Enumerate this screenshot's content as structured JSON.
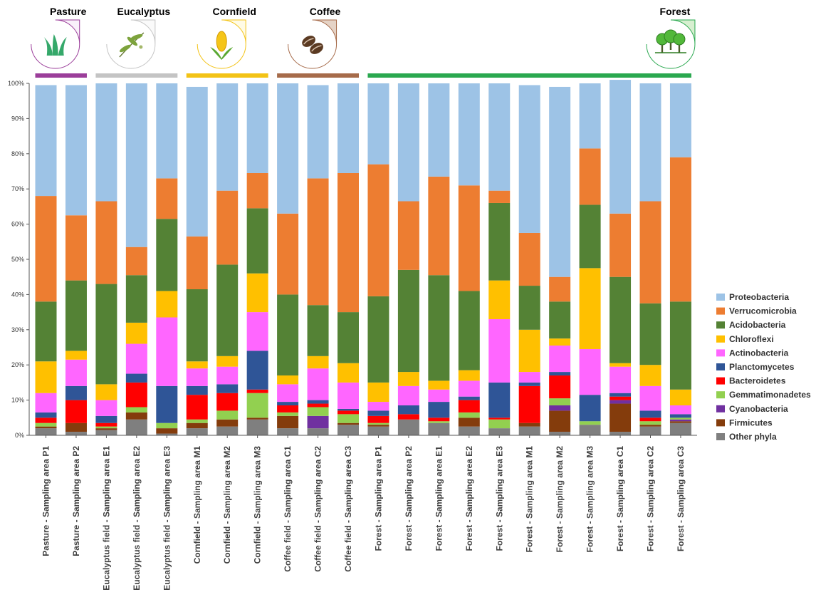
{
  "chart_data": {
    "type": "bar",
    "stacked": true,
    "percent": true,
    "ylim": [
      0,
      100
    ],
    "yticks": [
      "0%",
      "10%",
      "20%",
      "30%",
      "40%",
      "50%",
      "60%",
      "70%",
      "80%",
      "90%",
      "100%"
    ],
    "groups": [
      {
        "name": "Pasture",
        "color": "#9b3e9a",
        "icon": "grass-icon",
        "start": 0,
        "end": 1
      },
      {
        "name": "Eucalyptus",
        "color": "#c4c4c4",
        "icon": "eucalyptus-leaf-icon",
        "start": 2,
        "end": 4
      },
      {
        "name": "Cornfield",
        "color": "#f3c316",
        "icon": "corn-icon",
        "start": 5,
        "end": 7
      },
      {
        "name": "Coffee",
        "color": "#a66b4a",
        "icon": "coffee-bean-icon",
        "start": 8,
        "end": 10
      },
      {
        "name": "Forest",
        "color": "#2aa84f",
        "icon": "trees-icon",
        "start": 11,
        "end": 21
      }
    ],
    "categories": [
      "Pasture - Sampling area P1",
      "Pasture - Sampling area P2",
      "Eucalyptus field - Sampling area E1",
      "Eucalyptus field - Sampling area E2",
      "Eucalyptus field - Sampling area E3",
      "Cornfield - Sampling area M1",
      "Cornfield - Sampling area M2",
      "Cornfield - Sampling area M3",
      "Coffee field - Sampling area C1",
      "Coffee field - Sampling area C2",
      "Coffee field - Sampling area C3",
      "Forest - Sampling area P1",
      "Forest - Sampling area P2",
      "Forest - Sampling area E1",
      "Forest - Sampling area E2",
      "Forest - Sampling area E3",
      "Forest - Sampling area M1",
      "Forest - Sampling area M2",
      "Forest - Sampling area M3",
      "Forest - Sampling area C1",
      "Forest - Sampling area C2",
      "Forest - Sampling area C3"
    ],
    "series": [
      {
        "name": "Other phyla",
        "color": "#7f7f7f",
        "values": [
          2.0,
          1.0,
          1.5,
          4.5,
          0.5,
          2.0,
          2.5,
          4.5,
          2.0,
          2.0,
          3.0,
          2.5,
          4.5,
          3.5,
          2.5,
          2.0,
          2.5,
          1.0,
          3.0,
          1.0,
          2.5,
          3.5
        ]
      },
      {
        "name": "Firmicutes",
        "color": "#843c0c",
        "values": [
          0.5,
          2.5,
          0.5,
          2.0,
          1.5,
          1.5,
          2.0,
          0.5,
          3.5,
          0.0,
          0.5,
          0.5,
          0.0,
          0.0,
          2.5,
          0.0,
          1.0,
          6.0,
          0.0,
          8.0,
          0.5,
          0.5
        ]
      },
      {
        "name": "Cyanobacteria",
        "color": "#7030a0",
        "values": [
          0.0,
          0.0,
          0.0,
          0.0,
          0.0,
          0.0,
          0.0,
          0.0,
          0.0,
          3.5,
          0.0,
          0.0,
          0.0,
          0.0,
          0.0,
          0.0,
          0.0,
          1.5,
          0.0,
          1.0,
          0.0,
          0.5
        ]
      },
      {
        "name": "Gemmatimonadetes",
        "color": "#92d050",
        "values": [
          1.0,
          0.0,
          0.5,
          1.5,
          1.5,
          1.0,
          2.5,
          7.0,
          1.0,
          2.5,
          2.5,
          0.5,
          0.0,
          0.5,
          1.5,
          2.5,
          0.0,
          2.0,
          1.0,
          0.0,
          1.0,
          0.5
        ]
      },
      {
        "name": "Bacteroidetes",
        "color": "#ff0000",
        "values": [
          1.5,
          6.5,
          1.0,
          7.0,
          0.0,
          7.0,
          5.0,
          1.0,
          2.0,
          1.0,
          1.0,
          2.0,
          1.5,
          1.0,
          3.5,
          0.5,
          10.5,
          6.5,
          0.0,
          1.0,
          1.0,
          0.0
        ]
      },
      {
        "name": "Planctomycetes",
        "color": "#2f5597",
        "values": [
          1.5,
          4.0,
          2.0,
          2.5,
          10.5,
          2.5,
          2.5,
          11.0,
          1.0,
          1.0,
          0.5,
          1.5,
          2.5,
          4.5,
          1.0,
          10.0,
          1.0,
          1.0,
          7.5,
          1.0,
          2.0,
          1.0
        ]
      },
      {
        "name": "Actinobacteria",
        "color": "#ff66ff",
        "values": [
          5.5,
          7.5,
          4.5,
          8.5,
          19.5,
          5.0,
          5.0,
          11.0,
          5.0,
          9.0,
          7.5,
          2.5,
          5.5,
          3.5,
          4.5,
          18.0,
          3.0,
          7.5,
          13.0,
          7.5,
          7.0,
          2.5
        ]
      },
      {
        "name": "Chloroflexi",
        "color": "#ffc000",
        "values": [
          9.0,
          2.5,
          4.5,
          6.0,
          7.5,
          2.0,
          3.0,
          11.0,
          2.5,
          3.5,
          5.5,
          5.5,
          4.0,
          2.5,
          3.0,
          11.0,
          12.0,
          2.0,
          23.0,
          1.0,
          6.0,
          4.5
        ]
      },
      {
        "name": "Acidobacteria",
        "color": "#548235",
        "values": [
          17.0,
          20.0,
          28.5,
          13.5,
          20.5,
          20.5,
          26.0,
          18.5,
          23.0,
          14.5,
          14.5,
          24.5,
          29.0,
          30.0,
          22.5,
          22.0,
          12.5,
          10.5,
          18.0,
          24.5,
          17.5,
          25.0
        ]
      },
      {
        "name": "Verrucomicrobia",
        "color": "#ed7d31",
        "values": [
          30.0,
          18.5,
          23.5,
          8.0,
          11.5,
          15.0,
          21.0,
          10.0,
          23.0,
          36.0,
          39.5,
          37.5,
          19.5,
          28.0,
          30.0,
          3.5,
          15.0,
          7.0,
          16.0,
          18.0,
          29.0,
          41.0
        ]
      },
      {
        "name": "Proteobacteria",
        "color": "#9dc3e6",
        "values": [
          31.5,
          37.0,
          33.5,
          46.5,
          27.0,
          42.5,
          30.5,
          25.5,
          37.0,
          26.5,
          25.5,
          23.0,
          33.5,
          26.5,
          29.0,
          30.5,
          42.0,
          54.0,
          18.5,
          38.0,
          33.5,
          21.0
        ]
      }
    ],
    "legend_order": [
      "Proteobacteria",
      "Verrucomicrobia",
      "Acidobacteria",
      "Chloroflexi",
      "Actinobacteria",
      "Planctomycetes",
      "Bacteroidetes",
      "Gemmatimonadetes",
      "Cyanobacteria",
      "Firmicutes",
      "Other phyla"
    ],
    "legend_position": "right",
    "grid": false
  }
}
